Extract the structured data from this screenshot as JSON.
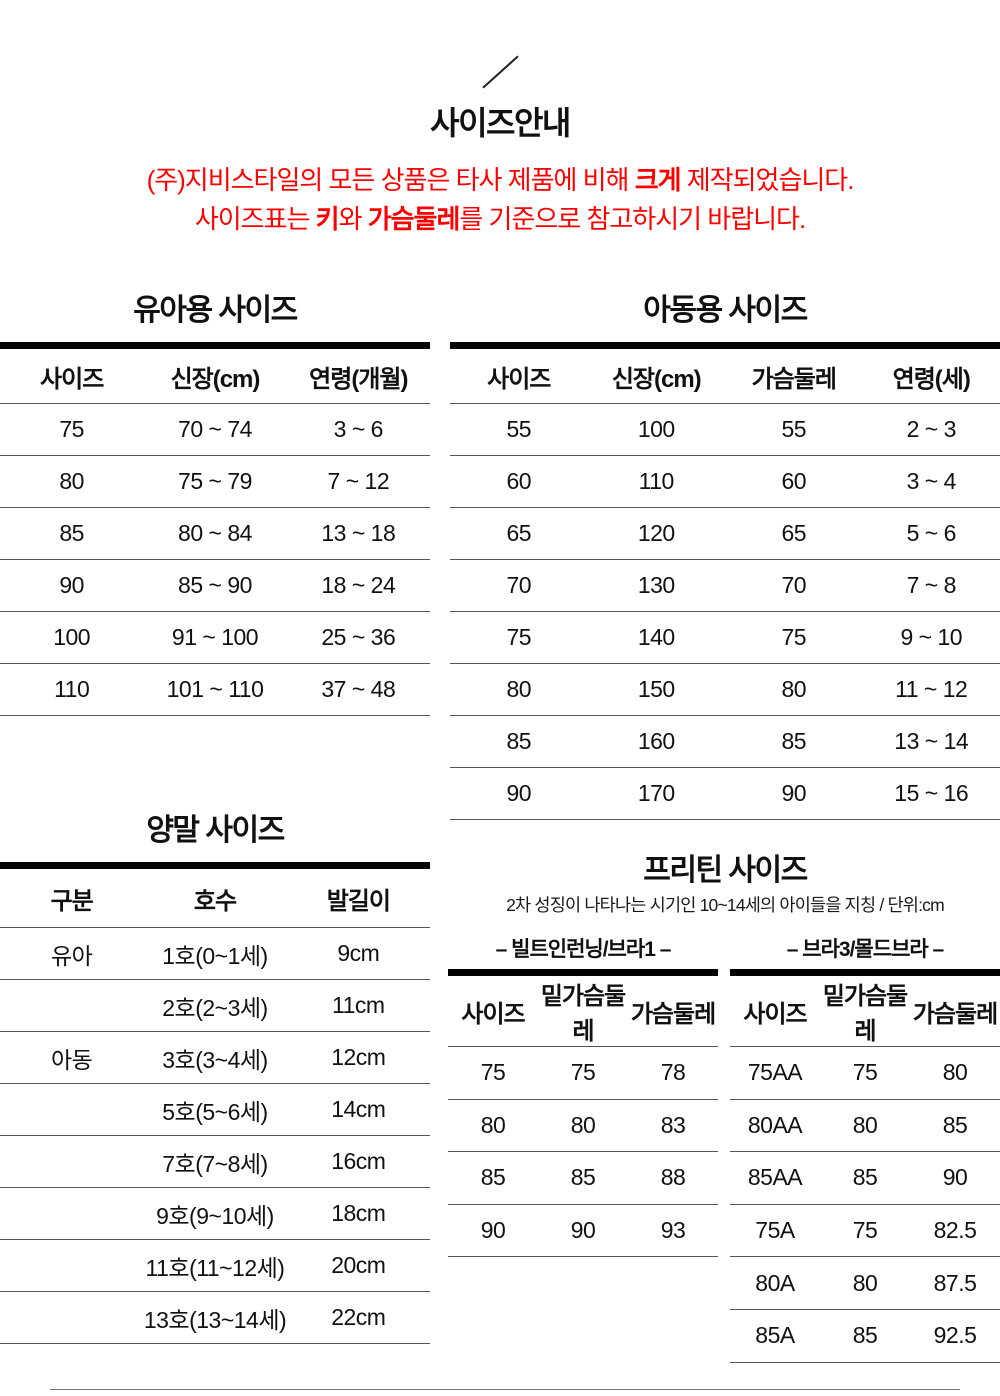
{
  "page": {
    "title": "사이즈안내",
    "colors": {
      "accent_red": "#fe0000",
      "text": "#111111",
      "thin_rule": "#555555",
      "thick_rule": "#000000"
    },
    "notice": {
      "line1_pre": "(주)지비스타일의 모든 상품은 타사 제품에 비해 ",
      "line1_bold": "크게",
      "line1_post": " 제작되었습니다.",
      "line2_pre": "사이즈표는 ",
      "line2_bold1": "키",
      "line2_mid": "와 ",
      "line2_bold2": "가슴둘레",
      "line2_post": "를 기준으로 참고하시기 바랍니다."
    }
  },
  "tables": {
    "infant": {
      "title": "유아용 사이즈",
      "headers": [
        "사이즈",
        "신장(cm)",
        "연령(개월)"
      ],
      "rows": [
        [
          "75",
          "70 ~ 74",
          "3 ~ 6"
        ],
        [
          "80",
          "75 ~ 79",
          "7 ~ 12"
        ],
        [
          "85",
          "80 ~ 84",
          "13 ~ 18"
        ],
        [
          "90",
          "85 ~ 90",
          "18 ~ 24"
        ],
        [
          "100",
          "91 ~ 100",
          "25 ~ 36"
        ],
        [
          "110",
          "101 ~ 110",
          "37 ~ 48"
        ]
      ]
    },
    "child": {
      "title": "아동용 사이즈",
      "headers": [
        "사이즈",
        "신장(cm)",
        "가슴둘레",
        "연령(세)"
      ],
      "rows": [
        [
          "55",
          "100",
          "55",
          "2 ~ 3"
        ],
        [
          "60",
          "110",
          "60",
          "3 ~ 4"
        ],
        [
          "65",
          "120",
          "65",
          "5 ~ 6"
        ],
        [
          "70",
          "130",
          "70",
          "7 ~ 8"
        ],
        [
          "75",
          "140",
          "75",
          "9 ~ 10"
        ],
        [
          "80",
          "150",
          "80",
          "11 ~ 12"
        ],
        [
          "85",
          "160",
          "85",
          "13 ~ 14"
        ],
        [
          "90",
          "170",
          "90",
          "15 ~ 16"
        ]
      ]
    },
    "sock": {
      "title": "양말 사이즈",
      "headers": [
        "구분",
        "호수",
        "발길이"
      ],
      "rows": [
        [
          "유아",
          "1호(0~1세)",
          "9cm"
        ],
        [
          "",
          "2호(2~3세)",
          "11cm"
        ],
        [
          "아동",
          "3호(3~4세)",
          "12cm"
        ],
        [
          "",
          "5호(5~6세)",
          "14cm"
        ],
        [
          "",
          "7호(7~8세)",
          "16cm"
        ],
        [
          "",
          "9호(9~10세)",
          "18cm"
        ],
        [
          "",
          "11호(11~12세)",
          "20cm"
        ],
        [
          "",
          "13호(13~14세)",
          "22cm"
        ]
      ]
    },
    "preteen": {
      "title": "프리틴 사이즈",
      "subtitle": "2차 성징이 나타나는 시기인 10~14세의 아이들을 지칭 / 단위:cm",
      "left": {
        "title": "– 빌트인런닝/브라1 –",
        "headers": [
          "사이즈",
          "밑가슴둘레",
          "가슴둘레"
        ],
        "rows": [
          [
            "75",
            "75",
            "78"
          ],
          [
            "80",
            "80",
            "83"
          ],
          [
            "85",
            "85",
            "88"
          ],
          [
            "90",
            "90",
            "93"
          ]
        ]
      },
      "right": {
        "title": "– 브라3/몰드브라 –",
        "headers": [
          "사이즈",
          "밑가슴둘레",
          "가슴둘레"
        ],
        "rows": [
          [
            "75AA",
            "75",
            "80"
          ],
          [
            "80AA",
            "80",
            "85"
          ],
          [
            "85AA",
            "85",
            "90"
          ],
          [
            "75A",
            "75",
            "82.5"
          ],
          [
            "80A",
            "80",
            "87.5"
          ],
          [
            "85A",
            "85",
            "92.5"
          ]
        ]
      }
    }
  }
}
